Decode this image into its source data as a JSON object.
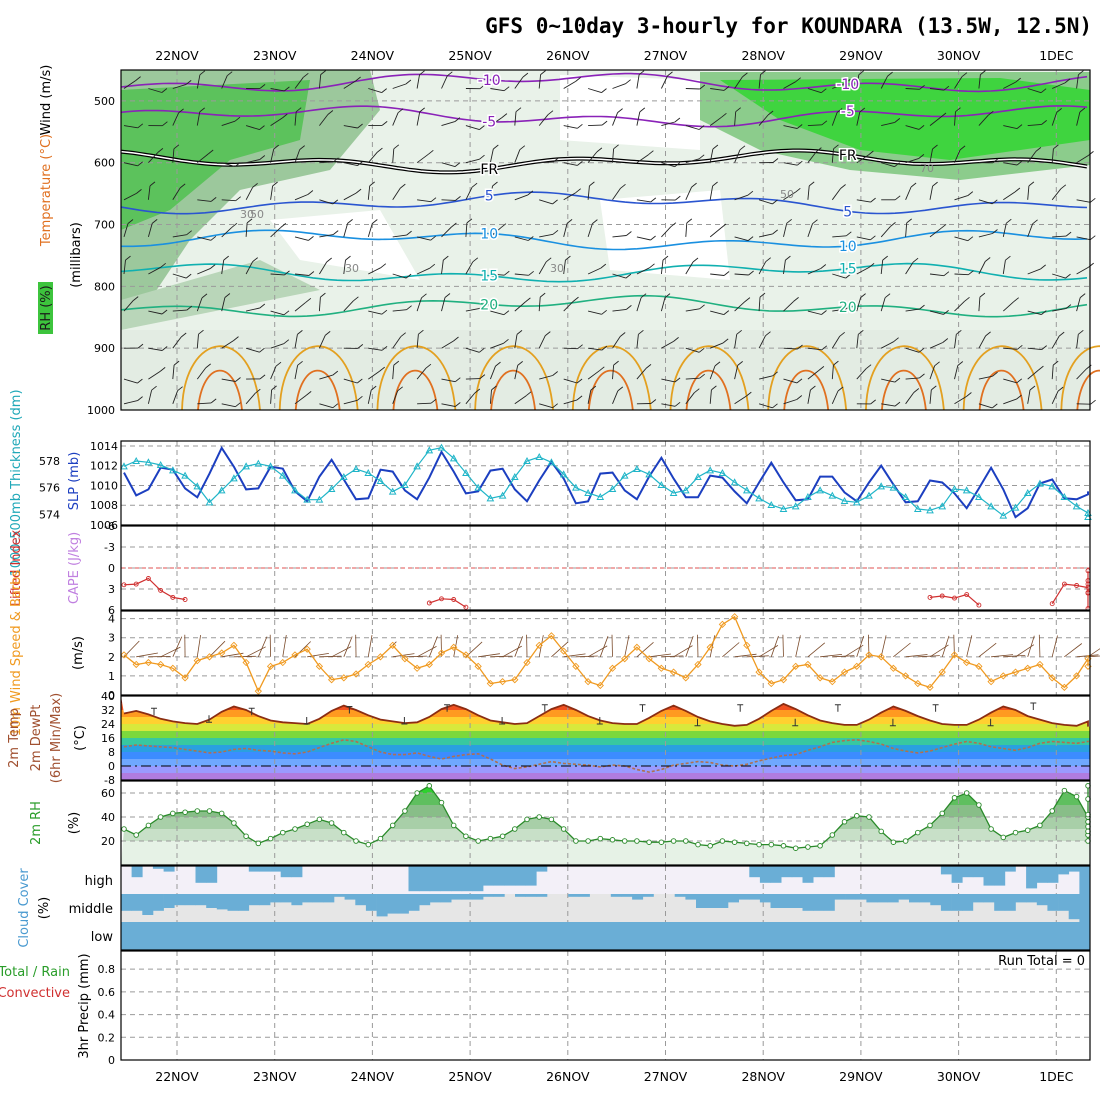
{
  "title": "GFS 0~10day 3-hourly for KOUNDARA (13.5W, 12.5N)",
  "dates": [
    "22NOV",
    "23NOV",
    "24NOV",
    "25NOV",
    "26NOV",
    "27NOV",
    "28NOV",
    "29NOV",
    "30NOV",
    "1DEC"
  ],
  "chart_data": [
    {
      "type": "contour",
      "id": "upper-air",
      "ylabel_lines": [
        {
          "text": "RH (%)",
          "color": "#2a9d2a"
        },
        {
          "text": "Temperature (°C)",
          "color": "#e07020"
        },
        {
          "text": "Wind (m/s)",
          "color": "#000000"
        },
        {
          "text": "(millibars)",
          "color": "#000000"
        }
      ],
      "y_ticks": [
        500,
        600,
        700,
        800,
        900,
        1000
      ],
      "ylim": [
        450,
        1000
      ],
      "isotherm_labels": [
        {
          "text": "-10",
          "color": "#8a22b8"
        },
        {
          "text": "-5",
          "color": "#8a22b8"
        },
        {
          "text": "FR",
          "color": "#000000"
        },
        {
          "text": "5",
          "color": "#2a55d0"
        },
        {
          "text": "10",
          "color": "#1a90e0"
        },
        {
          "text": "15",
          "color": "#10b0b0"
        },
        {
          "text": "20",
          "color": "#20b080"
        },
        {
          "text": "30",
          "color": "#888888"
        },
        {
          "text": "50",
          "color": "#888888"
        },
        {
          "text": "70",
          "color": "#888888"
        }
      ]
    },
    {
      "type": "line",
      "id": "thickness-slp",
      "ylabel_left": "1000-500mb Thickness (dm)",
      "ylabel_right": "SLP (mb)",
      "left_ticks": [
        574,
        576,
        578
      ],
      "right_ticks": [
        1006,
        1008,
        1010,
        1012,
        1014
      ],
      "left_lim": [
        573.2,
        579.5
      ],
      "right_lim": [
        1006,
        1014.5
      ],
      "series": [
        {
          "name": "SLP",
          "color": "#1c3fc0",
          "axis": "right",
          "values": [
            1011.3,
            1009.0,
            1009.6,
            1011.8,
            1011.6,
            1009.7,
            1008.8,
            1011.2,
            1013.8,
            1011.9,
            1009.6,
            1009.7,
            1011.9,
            1011.7,
            1009.4,
            1008.4,
            1010.9,
            1012.6,
            1010.6,
            1008.6,
            1008.7,
            1011.6,
            1011.4,
            1009.5,
            1008.6,
            1010.8,
            1013.4,
            1011.4,
            1009.2,
            1009.4,
            1011.5,
            1011.7,
            1009.6,
            1008.4,
            1010.5,
            1012.4,
            1010.7,
            1008.2,
            1008.4,
            1011.2,
            1011.3,
            1009.5,
            1008.6,
            1010.9,
            1012.8,
            1010.7,
            1008.8,
            1008.8,
            1011.0,
            1010.8,
            1009.4,
            1008.2,
            1010.3,
            1012.3,
            1010.3,
            1008.5,
            1008.6,
            1010.9,
            1010.9,
            1009.3,
            1008.4,
            1010.3,
            1012.0,
            1010.1,
            1008.3,
            1008.4,
            1010.5,
            1010.3,
            1009.2,
            1007.7,
            1009.7,
            1011.8,
            1009.6,
            1006.8,
            1007.7,
            1010.2,
            1010.6,
            1008.7,
            1008.6,
            1009.1,
            1009.4
          ]
        },
        {
          "name": "1000-500mb Thickness",
          "color": "#20b5c8",
          "axis": "left",
          "marker": "triangle",
          "values": [
            577.6,
            578.0,
            577.9,
            577.7,
            577.3,
            576.9,
            576.1,
            574.9,
            575.8,
            576.7,
            577.6,
            577.8,
            577.6,
            576.9,
            575.8,
            575.1,
            575.1,
            575.9,
            576.8,
            577.4,
            577.1,
            576.5,
            575.7,
            576.2,
            577.6,
            578.8,
            579.0,
            578.2,
            577.1,
            576.0,
            575.2,
            575.4,
            576.8,
            578.0,
            578.3,
            577.9,
            577.0,
            576.0,
            575.6,
            575.3,
            575.9,
            576.9,
            577.4,
            577.0,
            576.2,
            575.6,
            575.8,
            576.8,
            577.3,
            577.1,
            576.4,
            575.8,
            575.2,
            574.7,
            574.4,
            574.6,
            575.3,
            575.8,
            575.4,
            575.0,
            574.9,
            575.4,
            576.1,
            576.0,
            575.3,
            574.4,
            574.3,
            574.6,
            575.9,
            575.8,
            575.3,
            574.6,
            573.9,
            574.5,
            575.6,
            576.3,
            576.1,
            575.3,
            574.6,
            574.1,
            573.8
          ]
        }
      ]
    },
    {
      "type": "line",
      "id": "lifted-index-cape",
      "ylabel_left": "Lifted Index",
      "ylabel_right": "CAPE (J/kg)",
      "y_ticks": [
        -6,
        -3,
        0,
        3,
        6
      ],
      "ylim": [
        -6,
        6
      ],
      "zero_line": 0,
      "series": [
        {
          "name": "Lifted Index",
          "color": "#d03030",
          "segments": [
            {
              "start": 0,
              "values": [
                2.4,
                2.3,
                1.5,
                3.2,
                4.2,
                4.5
              ]
            },
            {
              "start": 25,
              "values": [
                5.0,
                4.4,
                4.5,
                5.6
              ]
            },
            {
              "start": 66,
              "values": [
                4.2,
                4.0,
                4.3,
                3.8,
                5.3
              ]
            },
            {
              "start": 76,
              "values": [
                5.1,
                2.3,
                2.5,
                2.8,
                2.3,
                3.6,
                5.8,
                3.5,
                1.8,
                0.4
              ]
            }
          ]
        }
      ]
    },
    {
      "type": "line",
      "id": "wind-speed",
      "ylabel_left": "10m Wind Speed & Barbs",
      "ylabel_right": "(m/s)",
      "y_ticks": [
        0,
        1,
        2,
        3,
        4
      ],
      "ylim": [
        0,
        4.4
      ],
      "series": [
        {
          "name": "10m Wind Speed",
          "color": "#f09a20",
          "marker": "diamond",
          "values": [
            2.1,
            1.6,
            1.7,
            1.6,
            1.4,
            0.9,
            1.8,
            2.0,
            2.2,
            2.6,
            1.7,
            0.2,
            1.5,
            1.7,
            2.1,
            2.4,
            1.5,
            0.8,
            0.9,
            1.1,
            1.6,
            2.0,
            2.6,
            1.9,
            1.4,
            1.6,
            2.2,
            2.5,
            2.1,
            1.5,
            0.6,
            0.7,
            0.8,
            1.7,
            2.6,
            3.1,
            2.3,
            1.5,
            0.7,
            0.5,
            1.4,
            1.9,
            2.5,
            1.9,
            1.4,
            1.2,
            0.9,
            1.6,
            2.5,
            3.7,
            4.1,
            2.6,
            1.2,
            0.6,
            0.8,
            1.5,
            1.6,
            0.9,
            0.7,
            1.2,
            1.5,
            2.1,
            2.0,
            1.4,
            1.0,
            0.6,
            0.4,
            1.2,
            2.1,
            1.7,
            1.5,
            0.7,
            1.0,
            1.2,
            1.4,
            1.6,
            0.9,
            0.4,
            1.0,
            1.9,
            1.5
          ]
        }
      ]
    },
    {
      "type": "area",
      "id": "temperature",
      "ylabel_lines": [
        "2m Temp",
        "2m DewPt",
        "(6hr Min/Max)"
      ],
      "ylabel_right": "(°C)",
      "y_ticks": [
        -8,
        0,
        8,
        16,
        24,
        32,
        40
      ],
      "ylim": [
        -8,
        40
      ],
      "series": [
        {
          "name": "2m Temp",
          "color": "#8b2d12",
          "values": [
            30.0,
            31.5,
            29.5,
            27.0,
            25.5,
            24.5,
            24.0,
            26.5,
            31.0,
            34.0,
            32.0,
            28.5,
            26.0,
            25.0,
            24.5,
            24.0,
            27.0,
            31.5,
            34.5,
            32.0,
            29.0,
            26.5,
            25.5,
            24.5,
            25.0,
            28.0,
            32.5,
            35.0,
            32.5,
            29.0,
            26.0,
            25.0,
            24.0,
            24.5,
            28.5,
            32.5,
            35.0,
            32.0,
            28.5,
            26.0,
            24.5,
            24.0,
            24.0,
            27.5,
            31.5,
            34.5,
            31.5,
            28.0,
            25.5,
            24.0,
            23.0,
            23.5,
            27.0,
            31.5,
            35.5,
            32.5,
            29.0,
            26.0,
            24.5,
            23.5,
            23.5,
            26.5,
            30.5,
            34.0,
            31.5,
            28.5,
            26.0,
            24.0,
            23.5,
            23.5,
            26.5,
            30.5,
            34.0,
            32.0,
            28.5,
            26.5,
            24.5,
            23.5,
            23.0,
            25.5,
            22.5
          ]
        },
        {
          "name": "2m DewPt",
          "color": "#b07050",
          "dashed": true,
          "values": [
            11.0,
            12.0,
            11.5,
            11.0,
            10.5,
            9.5,
            8.5,
            7.5,
            8.0,
            9.5,
            10.0,
            9.0,
            8.5,
            7.5,
            7.0,
            8.0,
            10.5,
            13.0,
            15.0,
            14.0,
            11.0,
            8.0,
            6.5,
            6.5,
            7.5,
            5.5,
            4.0,
            5.5,
            6.5,
            7.0,
            4.0,
            0.5,
            -1.5,
            -0.5,
            1.0,
            2.5,
            1.5,
            1.0,
            0.5,
            -0.5,
            0.5,
            0.0,
            -2.0,
            -3.5,
            -2.0,
            0.5,
            1.5,
            2.5,
            2.0,
            0.5,
            0.0,
            1.0,
            3.0,
            4.5,
            6.0,
            6.5,
            9.0,
            11.0,
            13.5,
            14.5,
            15.0,
            14.0,
            12.5,
            10.0,
            8.5,
            7.5,
            8.5,
            10.5,
            12.5,
            14.0,
            13.0,
            11.0,
            10.0,
            9.0,
            10.5,
            13.0,
            14.0,
            13.5,
            13.0,
            14.0,
            14.5
          ]
        }
      ],
      "max_markers": [
        33,
        33,
        34,
        35,
        35,
        35,
        35,
        35,
        35,
        36
      ],
      "min_markers": [
        25,
        24,
        24,
        24,
        24,
        23,
        23,
        23,
        23
      ]
    },
    {
      "type": "area",
      "id": "relative-humidity",
      "ylabel_left": "2m RH",
      "ylabel_right": "(%)",
      "y_ticks": [
        20,
        40,
        60
      ],
      "ylim": [
        0,
        70
      ],
      "series": [
        {
          "name": "2m RH",
          "color": "#2a8a2a",
          "values": [
            30,
            25,
            33,
            40,
            43,
            44,
            45,
            45,
            43,
            35,
            24,
            18,
            22,
            27,
            30,
            34,
            38,
            35,
            27,
            20,
            17,
            22,
            33,
            45,
            60,
            66,
            52,
            33,
            24,
            20,
            22,
            24,
            30,
            38,
            40,
            38,
            30,
            20,
            20,
            22,
            21,
            20,
            20,
            19,
            19,
            20,
            20,
            17,
            16,
            20,
            19,
            18,
            17,
            17,
            16,
            14,
            15,
            16,
            25,
            36,
            41,
            40,
            28,
            19,
            20,
            27,
            33,
            43,
            56,
            60,
            50,
            30,
            23,
            27,
            29,
            33,
            45,
            62,
            57,
            40,
            25,
            20,
            28,
            36,
            32,
            42,
            55,
            66
          ]
        }
      ]
    },
    {
      "type": "bar",
      "id": "cloud-cover",
      "ylabel_left": "Cloud Cover",
      "ylabel_right": "(%)",
      "layers": [
        "high",
        "middle",
        "low"
      ],
      "bar_color": "#6aaed6",
      "series": [
        {
          "name": "high",
          "values": [
            0,
            40,
            0,
            10,
            20,
            0,
            0,
            60,
            60,
            0,
            0,
            0,
            20,
            20,
            20,
            40,
            40,
            0,
            0,
            0,
            0,
            0,
            0,
            0,
            0,
            0,
            0,
            90,
            90,
            90,
            90,
            90,
            90,
            90,
            70,
            70,
            70,
            70,
            70,
            20,
            0,
            0,
            0,
            0,
            0,
            0,
            0,
            0,
            0,
            0,
            0,
            0,
            0,
            0,
            0,
            0,
            0,
            0,
            0,
            40,
            60,
            60,
            40,
            40,
            60,
            40,
            40,
            0,
            0,
            0,
            0,
            0,
            0,
            0,
            0,
            0,
            0,
            30,
            60,
            40,
            40,
            70,
            70,
            20,
            0,
            80,
            60,
            60,
            30,
            20,
            100
          ]
        },
        {
          "name": "middle",
          "values": [
            60,
            60,
            75,
            60,
            50,
            40,
            40,
            40,
            50,
            55,
            60,
            60,
            40,
            40,
            30,
            30,
            40,
            30,
            30,
            30,
            10,
            20,
            40,
            60,
            80,
            70,
            70,
            60,
            40,
            30,
            30,
            20,
            20,
            20,
            10,
            10,
            0,
            10,
            10,
            10,
            0,
            0,
            10,
            10,
            0,
            0,
            10,
            10,
            20,
            10,
            0,
            0,
            10,
            20,
            50,
            50,
            50,
            30,
            20,
            20,
            30,
            50,
            50,
            50,
            60,
            60,
            60,
            20,
            20,
            20,
            30,
            30,
            30,
            20,
            30,
            30,
            40,
            60,
            60,
            60,
            30,
            30,
            60,
            60,
            30,
            30,
            40,
            60,
            60,
            90,
            100
          ]
        },
        {
          "name": "low",
          "values": [
            100,
            100,
            100,
            100,
            100,
            100,
            100,
            100,
            100,
            100,
            100,
            100,
            100,
            100,
            100,
            100,
            100,
            100,
            100,
            100,
            100,
            100,
            100,
            100,
            100,
            100,
            100,
            100,
            100,
            100,
            100,
            100,
            100,
            100,
            100,
            100,
            100,
            100,
            100,
            100,
            100,
            100,
            100,
            100,
            100,
            100,
            100,
            100,
            100,
            100,
            100,
            100,
            100,
            100,
            100,
            100,
            100,
            100,
            100,
            100,
            100,
            100,
            100,
            100,
            100,
            100,
            100,
            100,
            100,
            100,
            100,
            100,
            100,
            100,
            100,
            100,
            100,
            100,
            100,
            100,
            100,
            100,
            100,
            100,
            100,
            100,
            100,
            100,
            100,
            100
          ]
        }
      ]
    },
    {
      "type": "bar",
      "id": "precipitation",
      "ylabel_lines": [
        {
          "text": "Total / Rain",
          "color": "#2a9d2a"
        },
        {
          "text": "Convective",
          "color": "#d03030"
        }
      ],
      "ylabel_axis": "3hr Precip (mm)",
      "y_ticks": [
        0,
        0.2,
        0.4,
        0.6,
        0.8
      ],
      "ylim": [
        0,
        0.96
      ],
      "run_total_label": "Run Total = 0",
      "values": []
    }
  ]
}
